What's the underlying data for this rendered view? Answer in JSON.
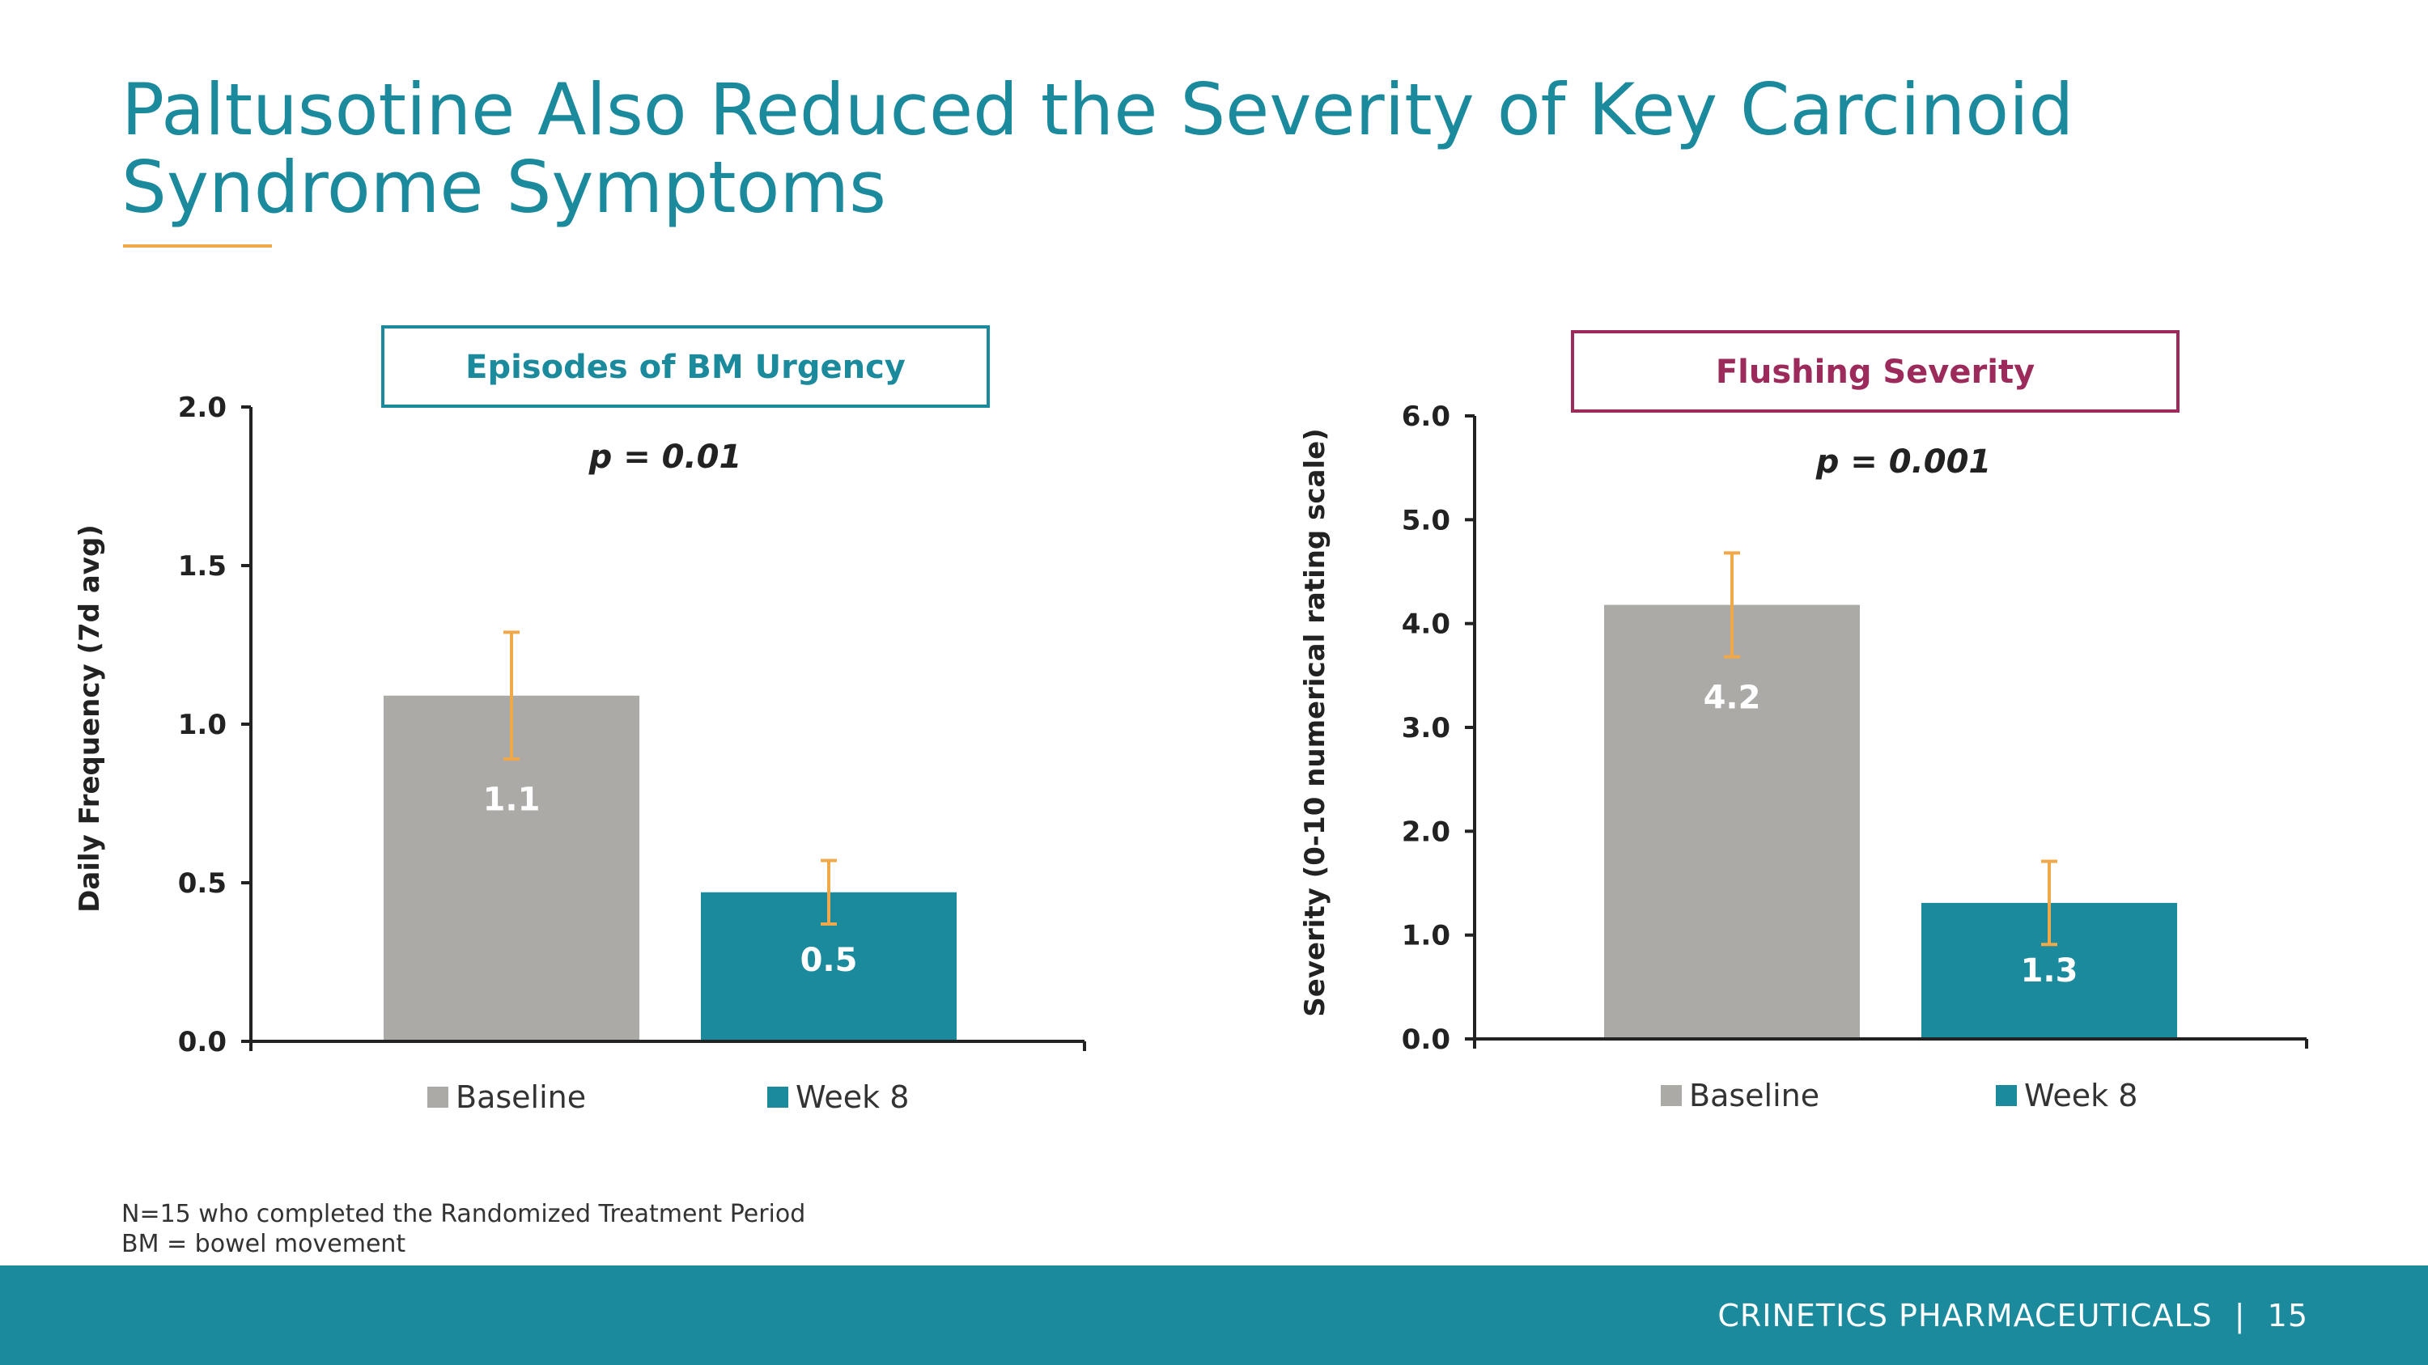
{
  "slide": {
    "title": "Paltusotine Also Reduced the Severity of Key Carcinoid Syndrome Symptoms",
    "footnotes": [
      "N=15 who completed the Randomized Treatment Period",
      "BM = bowel movement"
    ],
    "footer": {
      "company": "CRINETICS PHARMACEUTICALS",
      "separator": "|",
      "page_number": "15"
    }
  },
  "colors": {
    "title": "#1b8a9c",
    "accent_rule": "#f0a94a",
    "baseline_bar": "#abaaa7",
    "week8_bar": "#1b8a9c",
    "error_bar": "#f0a94a",
    "flushing_title": "#9c2a5b",
    "footer_bar": "#1b8a9c"
  },
  "chart_data": [
    {
      "type": "bar",
      "title": "Episodes of BM Urgency",
      "annotation": "p = 0.01",
      "ylabel": "Daily Frequency (7d avg)",
      "xlabel": "",
      "ylim": [
        0,
        2.0
      ],
      "ticks": [
        0,
        0.5,
        1.0,
        1.5,
        2.0
      ],
      "tick_labels": [
        "0.0",
        "0.5",
        "1.0",
        "1.5",
        "2.0"
      ],
      "categories": [
        "Baseline",
        "Week 8"
      ],
      "values": [
        1.09,
        0.47
      ],
      "value_labels": [
        "1.1",
        "0.5"
      ],
      "error_upper": [
        1.29,
        0.57
      ],
      "error_lower": [
        0.89,
        0.37
      ],
      "legend": [
        "Baseline",
        "Week 8"
      ],
      "legend_position": "bottom"
    },
    {
      "type": "bar",
      "title": "Flushing Severity",
      "annotation": "p = 0.001",
      "ylabel": "Severity (0-10 numerical rating scale)",
      "xlabel": "",
      "ylim": [
        0,
        6.0
      ],
      "ticks": [
        0,
        1,
        2,
        3,
        4,
        5,
        6
      ],
      "tick_labels": [
        "0.0",
        "1.0",
        "2.0",
        "3.0",
        "4.0",
        "5.0",
        "6.0"
      ],
      "categories": [
        "Baseline",
        "Week 8"
      ],
      "values": [
        4.18,
        1.31
      ],
      "value_labels": [
        "4.2",
        "1.3"
      ],
      "error_upper": [
        4.68,
        1.71
      ],
      "error_lower": [
        3.68,
        0.91
      ],
      "legend": [
        "Baseline",
        "Week 8"
      ],
      "legend_position": "bottom"
    }
  ]
}
